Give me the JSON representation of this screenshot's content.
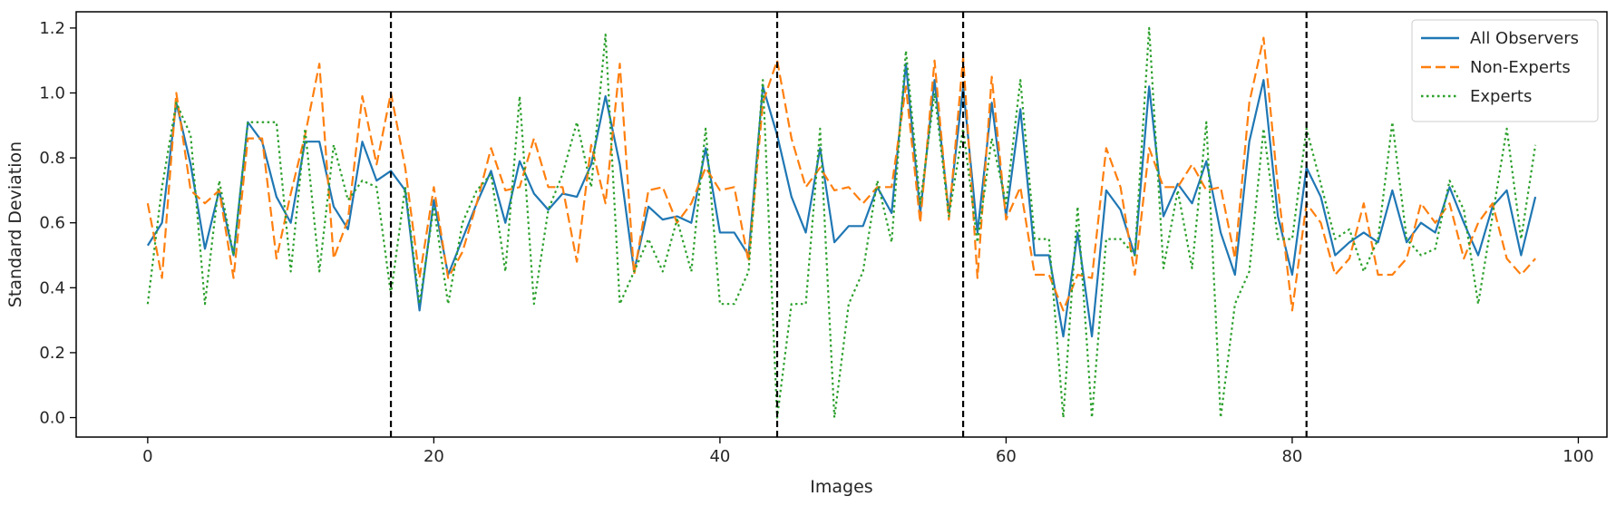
{
  "chart_data": {
    "type": "line",
    "title": "",
    "xlabel": "Images",
    "ylabel": "Standard Deviation",
    "xlim": [
      -5,
      102
    ],
    "ylim": [
      -0.06,
      1.25
    ],
    "xticks": [
      0,
      20,
      40,
      60,
      80,
      100
    ],
    "yticks": [
      0.0,
      0.2,
      0.4,
      0.6,
      0.8,
      1.0,
      1.2
    ],
    "xtick_labels": [
      "0",
      "20",
      "40",
      "60",
      "80",
      "100"
    ],
    "ytick_labels": [
      "0.0",
      "0.2",
      "0.4",
      "0.6",
      "0.8",
      "1.0",
      "1.2"
    ],
    "grid": false,
    "legend_position": "top-right",
    "vertical_lines": [
      17,
      44,
      57,
      81
    ],
    "vertical_line_color": "#000000",
    "series": [
      {
        "name": "All Observers",
        "color": "#1f77b4",
        "dash": "solid",
        "values": [
          0.53,
          0.6,
          0.97,
          0.78,
          0.52,
          0.7,
          0.5,
          0.91,
          0.85,
          0.68,
          0.6,
          0.85,
          0.85,
          0.65,
          0.58,
          0.85,
          0.73,
          0.76,
          0.7,
          0.33,
          0.67,
          0.44,
          0.55,
          0.66,
          0.76,
          0.6,
          0.79,
          0.69,
          0.64,
          0.69,
          0.68,
          0.78,
          0.99,
          0.78,
          0.45,
          0.65,
          0.61,
          0.62,
          0.6,
          0.83,
          0.57,
          0.57,
          0.5,
          1.02,
          0.87,
          0.68,
          0.57,
          0.83,
          0.54,
          0.59,
          0.59,
          0.71,
          0.63,
          1.09,
          0.63,
          1.04,
          0.63,
          1.02,
          0.57,
          0.97,
          0.62,
          0.95,
          0.5,
          0.5,
          0.25,
          0.57,
          0.25,
          0.7,
          0.64,
          0.5,
          1.02,
          0.62,
          0.72,
          0.66,
          0.79,
          0.57,
          0.44,
          0.85,
          1.04,
          0.62,
          0.44,
          0.77,
          0.68,
          0.5,
          0.54,
          0.57,
          0.54,
          0.7,
          0.54,
          0.6,
          0.57,
          0.71,
          0.6,
          0.5,
          0.65,
          0.7,
          0.5,
          0.68
        ]
      },
      {
        "name": "Non-Experts",
        "color": "#ff7f0e",
        "dash": "dashed",
        "values": [
          0.66,
          0.43,
          1.0,
          0.7,
          0.66,
          0.7,
          0.43,
          0.86,
          0.86,
          0.49,
          0.69,
          0.87,
          1.09,
          0.49,
          0.61,
          0.99,
          0.78,
          1.0,
          0.77,
          0.43,
          0.71,
          0.43,
          0.51,
          0.66,
          0.83,
          0.7,
          0.71,
          0.86,
          0.71,
          0.71,
          0.48,
          0.84,
          0.66,
          1.09,
          0.44,
          0.7,
          0.71,
          0.6,
          0.66,
          0.77,
          0.7,
          0.71,
          0.48,
          0.97,
          1.1,
          0.86,
          0.71,
          0.77,
          0.7,
          0.71,
          0.66,
          0.71,
          0.71,
          1.02,
          0.6,
          1.1,
          0.61,
          1.11,
          0.43,
          1.05,
          0.61,
          0.71,
          0.44,
          0.44,
          0.33,
          0.44,
          0.43,
          0.83,
          0.71,
          0.44,
          0.83,
          0.71,
          0.71,
          0.78,
          0.7,
          0.71,
          0.49,
          0.97,
          1.17,
          0.71,
          0.33,
          0.66,
          0.6,
          0.44,
          0.49,
          0.66,
          0.44,
          0.44,
          0.49,
          0.66,
          0.6,
          0.66,
          0.49,
          0.6,
          0.66,
          0.49,
          0.44,
          0.49
        ]
      },
      {
        "name": "Experts",
        "color": "#2ca02c",
        "dash": "dotted",
        "values": [
          0.35,
          0.71,
          0.97,
          0.87,
          0.35,
          0.73,
          0.5,
          0.91,
          0.91,
          0.91,
          0.45,
          0.89,
          0.45,
          0.84,
          0.67,
          0.73,
          0.71,
          0.38,
          0.71,
          0.35,
          0.65,
          0.35,
          0.6,
          0.7,
          0.75,
          0.45,
          0.99,
          0.35,
          0.64,
          0.75,
          0.91,
          0.71,
          1.18,
          0.35,
          0.45,
          0.55,
          0.45,
          0.61,
          0.45,
          0.89,
          0.35,
          0.35,
          0.45,
          1.04,
          0.0,
          0.35,
          0.35,
          0.89,
          0.0,
          0.35,
          0.45,
          0.73,
          0.54,
          1.13,
          0.66,
          1.0,
          0.62,
          0.89,
          0.54,
          0.86,
          0.66,
          1.04,
          0.55,
          0.55,
          0.0,
          0.65,
          0.0,
          0.55,
          0.55,
          0.5,
          1.2,
          0.46,
          0.7,
          0.46,
          0.91,
          0.0,
          0.35,
          0.45,
          0.89,
          0.55,
          0.55,
          0.89,
          0.72,
          0.55,
          0.58,
          0.45,
          0.55,
          0.91,
          0.55,
          0.5,
          0.52,
          0.73,
          0.64,
          0.35,
          0.62,
          0.89,
          0.55,
          0.84
        ]
      }
    ]
  }
}
